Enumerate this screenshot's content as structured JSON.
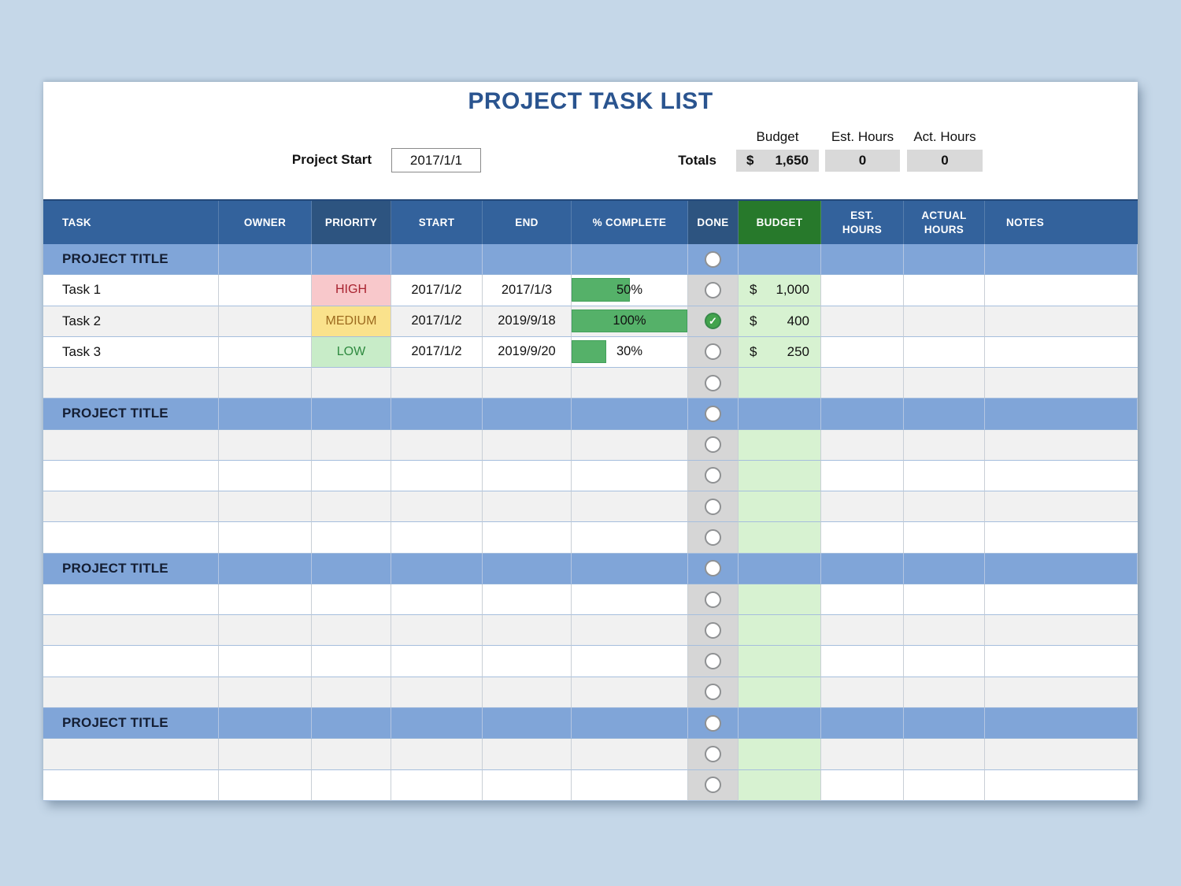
{
  "page": {
    "title": "PROJECT TASK LIST"
  },
  "header": {
    "project_start_label": "Project Start",
    "project_start_value": "2017/1/1",
    "totals_label": "Totals",
    "totals": [
      {
        "label": "Budget",
        "prefix": "$",
        "value": "1,650"
      },
      {
        "label": "Est. Hours",
        "value": "0"
      },
      {
        "label": "Act. Hours",
        "value": "0"
      }
    ]
  },
  "table": {
    "columns": [
      {
        "key": "task",
        "label": "TASK",
        "class": "h-task"
      },
      {
        "key": "owner",
        "label": "OWNER",
        "class": ""
      },
      {
        "key": "priority",
        "label": "PRIORITY",
        "class": "h-dark"
      },
      {
        "key": "start",
        "label": "START",
        "class": ""
      },
      {
        "key": "end",
        "label": "END",
        "class": ""
      },
      {
        "key": "complete",
        "label": "% COMPLETE",
        "class": ""
      },
      {
        "key": "done",
        "label": "DONE",
        "class": "h-dark"
      },
      {
        "key": "budget",
        "label": "BUDGET",
        "class": "h-green"
      },
      {
        "key": "est",
        "label": "EST.\nHOURS",
        "class": ""
      },
      {
        "key": "actual",
        "label": "ACTUAL\nHOURS",
        "class": ""
      },
      {
        "key": "notes",
        "label": "NOTES",
        "class": "h-notes"
      }
    ],
    "rows": [
      {
        "type": "title",
        "task": "PROJECT TITLE",
        "done": false
      },
      {
        "type": "task",
        "shade": "white",
        "task": "Task 1",
        "owner": "",
        "priority": "HIGH",
        "priority_level": "high",
        "start": "2017/1/2",
        "end": "2017/1/3",
        "complete_pct": 50,
        "complete_label": "50%",
        "done": false,
        "currency": "$",
        "budget": "1,000",
        "est": "",
        "actual": "",
        "notes": ""
      },
      {
        "type": "task",
        "shade": "gray",
        "task": "Task 2",
        "owner": "",
        "priority": "MEDIUM",
        "priority_level": "medium",
        "start": "2017/1/2",
        "end": "2019/9/18",
        "complete_pct": 100,
        "complete_label": "100%",
        "done": true,
        "currency": "$",
        "budget": "400",
        "est": "",
        "actual": "",
        "notes": ""
      },
      {
        "type": "task",
        "shade": "white",
        "task": "Task 3",
        "owner": "",
        "priority": "LOW",
        "priority_level": "low",
        "start": "2017/1/2",
        "end": "2019/9/20",
        "complete_pct": 30,
        "complete_label": "30%",
        "done": false,
        "currency": "$",
        "budget": "250",
        "est": "",
        "actual": "",
        "notes": ""
      },
      {
        "type": "empty",
        "shade": "gray",
        "done": false
      },
      {
        "type": "title",
        "task": "PROJECT TITLE",
        "done": false
      },
      {
        "type": "empty",
        "shade": "gray",
        "done": false
      },
      {
        "type": "empty",
        "shade": "white",
        "done": false
      },
      {
        "type": "empty",
        "shade": "gray",
        "done": false
      },
      {
        "type": "empty",
        "shade": "white",
        "done": false
      },
      {
        "type": "title",
        "task": "PROJECT TITLE",
        "done": false
      },
      {
        "type": "empty",
        "shade": "white",
        "done": false
      },
      {
        "type": "empty",
        "shade": "gray",
        "done": false
      },
      {
        "type": "empty",
        "shade": "white",
        "done": false
      },
      {
        "type": "empty",
        "shade": "gray",
        "done": false
      },
      {
        "type": "title",
        "task": "PROJECT TITLE",
        "done": false
      },
      {
        "type": "empty",
        "shade": "gray",
        "done": false
      },
      {
        "type": "empty",
        "shade": "white",
        "done": false
      }
    ]
  },
  "icons": {
    "check_glyph": "✓"
  },
  "colors": {
    "page_background": "#c5d7e8",
    "title_text": "#2a548f",
    "header_blue": "#33629c",
    "header_dark_blue": "#2d5480",
    "header_green": "#27792b",
    "title_row_blue": "#80a5d8",
    "row_gray": "#f1f1f1",
    "done_column_gray": "#d6d6d6",
    "budget_column_green": "#d7f2d1",
    "progress_green": "#55b169",
    "totals_cell_gray": "#d9d9d9",
    "high_bg": "#f8c8cb",
    "high_text": "#a82330",
    "medium_bg": "#fae28c",
    "medium_text": "#9c6a1e",
    "low_bg": "#c8ecc8",
    "low_text": "#2f8a40"
  }
}
